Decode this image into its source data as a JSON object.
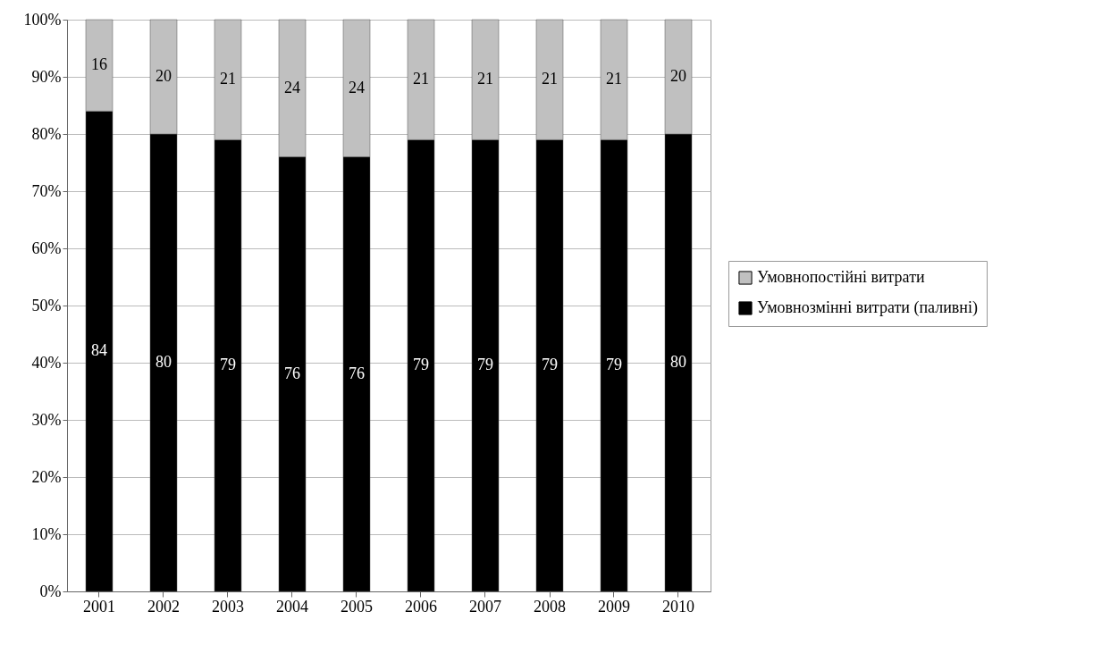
{
  "chart_data": {
    "type": "bar",
    "stacked": true,
    "categories": [
      "2001",
      "2002",
      "2003",
      "2004",
      "2005",
      "2006",
      "2007",
      "2008",
      "2009",
      "2010"
    ],
    "series": [
      {
        "name": "Умовнозмінні витрати (паливні)",
        "color": "#000000",
        "values": [
          84,
          80,
          79,
          76,
          76,
          79,
          79,
          79,
          79,
          80
        ]
      },
      {
        "name": "Умовнопостійні витрати",
        "color": "#c0c0c0",
        "values": [
          16,
          20,
          21,
          24,
          24,
          21,
          21,
          21,
          21,
          20
        ]
      }
    ],
    "ylim": [
      0,
      100
    ],
    "yticks": [
      {
        "value": 0,
        "label": "0%"
      },
      {
        "value": 10,
        "label": "10%"
      },
      {
        "value": 20,
        "label": "20%"
      },
      {
        "value": 30,
        "label": "30%"
      },
      {
        "value": 40,
        "label": "40%"
      },
      {
        "value": 50,
        "label": "50%"
      },
      {
        "value": 60,
        "label": "60%"
      },
      {
        "value": 70,
        "label": "70%"
      },
      {
        "value": 80,
        "label": "80%"
      },
      {
        "value": 90,
        "label": "90%"
      },
      {
        "value": 100,
        "label": "100%"
      }
    ],
    "grid": "y",
    "legend": "right",
    "data_labels": true
  }
}
